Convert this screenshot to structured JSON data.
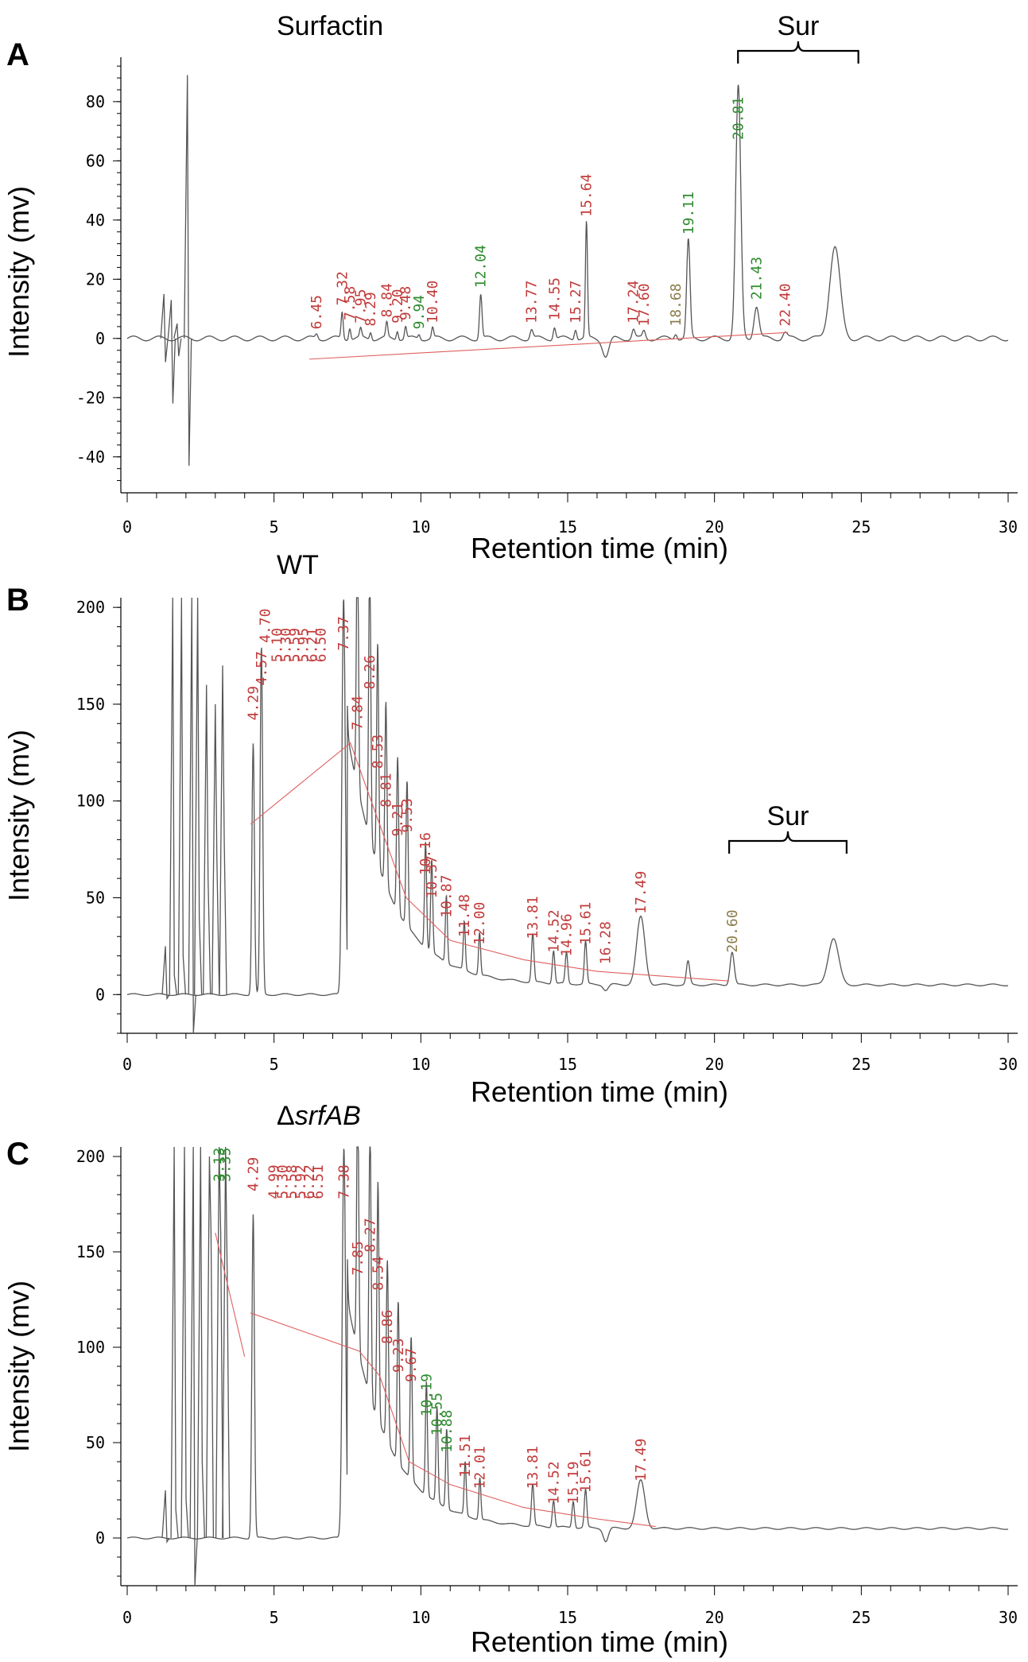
{
  "colors": {
    "trace": "#555555",
    "baseline": "#e06060",
    "label_red": "#c23b3b",
    "label_green": "#2e8b2e",
    "label_olive": "#8b7d4b"
  },
  "chart_data": [
    {
      "type": "line",
      "panel": "A",
      "title": "Surfactin",
      "xlabel": "Retention time (min)",
      "ylabel": "Intensity (mv)",
      "xlim": [
        0,
        30
      ],
      "ylim": [
        -50,
        95
      ],
      "xticks": [
        0,
        5,
        10,
        15,
        20,
        25,
        30
      ],
      "yticks": [
        -40,
        -20,
        0,
        20,
        40,
        60,
        80
      ],
      "bracket": {
        "label": "Sur",
        "x_start": 20.8,
        "x_end": 24.9
      },
      "baseline_y": 0,
      "spikes": [
        [
          1.25,
          15,
          -8
        ],
        [
          1.5,
          13,
          -22
        ],
        [
          1.7,
          5,
          -6
        ],
        [
          2.05,
          89,
          -43
        ]
      ],
      "peaks": [
        {
          "t": 6.45,
          "h": 1.5,
          "w": 0.06
        },
        {
          "t": 7.32,
          "h": 9,
          "w": 0.05
        },
        {
          "t": 7.58,
          "h": 4,
          "w": 0.05
        },
        {
          "t": 7.95,
          "h": 3,
          "w": 0.05
        },
        {
          "t": 8.29,
          "h": 2.5,
          "w": 0.05
        },
        {
          "t": 8.84,
          "h": 5,
          "w": 0.05
        },
        {
          "t": 9.2,
          "h": 3,
          "w": 0.05
        },
        {
          "t": 9.48,
          "h": 4,
          "w": 0.05
        },
        {
          "t": 9.94,
          "h": 1.5,
          "w": 0.05
        },
        {
          "t": 10.4,
          "h": 3.5,
          "w": 0.05
        },
        {
          "t": 12.04,
          "h": 15,
          "w": 0.06
        },
        {
          "t": 13.77,
          "h": 3,
          "w": 0.07
        },
        {
          "t": 14.55,
          "h": 4,
          "w": 0.06
        },
        {
          "t": 15.27,
          "h": 3.5,
          "w": 0.06
        },
        {
          "t": 15.64,
          "h": 39,
          "w": 0.05
        },
        {
          "t": 16.3,
          "h": -6,
          "w": 0.15
        },
        {
          "t": 17.24,
          "h": 3,
          "w": 0.07
        },
        {
          "t": 17.6,
          "h": 2.5,
          "w": 0.07
        },
        {
          "t": 18.68,
          "h": 2,
          "w": 0.07
        },
        {
          "t": 19.11,
          "h": 33,
          "w": 0.08
        },
        {
          "t": 20.81,
          "h": 85,
          "w": 0.12
        },
        {
          "t": 21.43,
          "h": 11,
          "w": 0.12
        },
        {
          "t": 22.4,
          "h": 2,
          "w": 0.1
        },
        {
          "t": 24.1,
          "h": 31,
          "w": 0.25
        }
      ],
      "labels": [
        {
          "t": 6.45,
          "text": "6.45",
          "color": "red",
          "y": 2
        },
        {
          "t": 7.32,
          "text": "7.32",
          "color": "red",
          "y": 10
        },
        {
          "t": 7.58,
          "text": "7.58",
          "color": "red",
          "y": 5
        },
        {
          "t": 7.95,
          "text": "7.95",
          "color": "red",
          "y": 4
        },
        {
          "t": 8.29,
          "text": "8.29",
          "color": "red",
          "y": 3
        },
        {
          "t": 8.84,
          "text": "8.84",
          "color": "red",
          "y": 6
        },
        {
          "t": 9.2,
          "text": "9.20",
          "color": "red",
          "y": 4
        },
        {
          "t": 9.48,
          "text": "9.48",
          "color": "red",
          "y": 5
        },
        {
          "t": 9.94,
          "text": "9.94",
          "color": "green",
          "y": 2
        },
        {
          "t": 10.4,
          "text": "10.40",
          "color": "red",
          "y": 4
        },
        {
          "t": 12.04,
          "text": "12.04",
          "color": "green",
          "y": 16
        },
        {
          "t": 13.77,
          "text": "13.77",
          "color": "red",
          "y": 4
        },
        {
          "t": 14.55,
          "text": "14.55",
          "color": "red",
          "y": 5
        },
        {
          "t": 15.27,
          "text": "15.27",
          "color": "red",
          "y": 4
        },
        {
          "t": 15.64,
          "text": "15.64",
          "color": "red",
          "y": 40
        },
        {
          "t": 17.24,
          "text": "17.24",
          "color": "red",
          "y": 4
        },
        {
          "t": 17.6,
          "text": "17.60",
          "color": "red",
          "y": 3
        },
        {
          "t": 18.68,
          "text": "18.68",
          "color": "olive",
          "y": 3
        },
        {
          "t": 19.11,
          "text": "19.11",
          "color": "green",
          "y": 34
        },
        {
          "t": 20.81,
          "text": "20.81",
          "color": "green",
          "y": 66
        },
        {
          "t": 21.43,
          "text": "21.43",
          "color": "green",
          "y": 12
        },
        {
          "t": 22.4,
          "text": "22.40",
          "color": "red",
          "y": 3
        }
      ]
    },
    {
      "type": "line",
      "panel": "B",
      "title": "WT",
      "xlabel": "Retention time (min)",
      "ylabel": "Intensity (mv)",
      "xlim": [
        0,
        30
      ],
      "ylim": [
        -20,
        205
      ],
      "xticks": [
        0,
        5,
        10,
        15,
        20,
        25,
        30
      ],
      "yticks": [
        0,
        50,
        100,
        150,
        200
      ],
      "bracket": {
        "label": "Sur",
        "x_start": 20.5,
        "x_end": 24.5
      },
      "spikes": [
        [
          1.3,
          25,
          -2
        ],
        [
          1.55,
          205,
          10
        ],
        [
          1.85,
          205,
          20
        ],
        [
          2.2,
          205,
          -25
        ],
        [
          2.4,
          205,
          40
        ],
        [
          2.7,
          160,
          60
        ],
        [
          3.0,
          150,
          70
        ],
        [
          3.25,
          170,
          80
        ]
      ],
      "peaks": [
        {
          "t": 4.29,
          "h": 130,
          "w": 0.06
        },
        {
          "t": 4.57,
          "h": 180,
          "w": 0.06
        },
        {
          "t": 7.37,
          "h": 205,
          "w": 0.08
        },
        {
          "t": 7.84,
          "h": 135,
          "w": 0.05
        },
        {
          "t": 8.26,
          "h": 150,
          "w": 0.05
        },
        {
          "t": 8.53,
          "h": 115,
          "w": 0.05
        },
        {
          "t": 8.81,
          "h": 95,
          "w": 0.05
        },
        {
          "t": 9.21,
          "h": 80,
          "w": 0.05
        },
        {
          "t": 9.53,
          "h": 75,
          "w": 0.05
        },
        {
          "t": 10.16,
          "h": 55,
          "w": 0.05
        },
        {
          "t": 10.37,
          "h": 48,
          "w": 0.05
        },
        {
          "t": 10.87,
          "h": 35,
          "w": 0.05
        },
        {
          "t": 11.48,
          "h": 25,
          "w": 0.05
        },
        {
          "t": 12.0,
          "h": 22,
          "w": 0.05
        },
        {
          "t": 13.81,
          "h": 25,
          "w": 0.06
        },
        {
          "t": 14.52,
          "h": 17,
          "w": 0.06
        },
        {
          "t": 14.96,
          "h": 16,
          "w": 0.06
        },
        {
          "t": 15.61,
          "h": 22,
          "w": 0.06
        },
        {
          "t": 16.3,
          "h": -3,
          "w": 0.12
        },
        {
          "t": 17.49,
          "h": 35,
          "w": 0.2
        },
        {
          "t": 19.1,
          "h": 12,
          "w": 0.08
        },
        {
          "t": 20.6,
          "h": 17,
          "w": 0.1
        },
        {
          "t": 24.05,
          "h": 24,
          "w": 0.25
        }
      ],
      "labels": [
        {
          "t": 4.29,
          "text": "4.29",
          "color": "red",
          "y": 140
        },
        {
          "t": 4.57,
          "text": "4.57",
          "color": "red",
          "y": 158
        },
        {
          "t": 4.7,
          "text": "4.70",
          "color": "red",
          "y": 180
        },
        {
          "t": 5.1,
          "text": "5.10",
          "color": "red",
          "y": 170
        },
        {
          "t": 5.4,
          "text": "5.30",
          "color": "red",
          "y": 170
        },
        {
          "t": 5.7,
          "text": "5.59",
          "color": "red",
          "y": 170
        },
        {
          "t": 6.0,
          "text": "5.95",
          "color": "red",
          "y": 170
        },
        {
          "t": 6.3,
          "text": "6.21",
          "color": "red",
          "y": 170
        },
        {
          "t": 6.6,
          "text": "6.50",
          "color": "red",
          "y": 170
        },
        {
          "t": 7.37,
          "text": "7.37",
          "color": "red",
          "y": 176
        },
        {
          "t": 7.84,
          "text": "7.84",
          "color": "red",
          "y": 135
        },
        {
          "t": 8.26,
          "text": "8.26",
          "color": "red",
          "y": 156
        },
        {
          "t": 8.53,
          "text": "8.53",
          "color": "red",
          "y": 115
        },
        {
          "t": 8.81,
          "text": "8.81",
          "color": "red",
          "y": 95
        },
        {
          "t": 9.21,
          "text": "9.21",
          "color": "red",
          "y": 80
        },
        {
          "t": 9.53,
          "text": "9.53",
          "color": "red",
          "y": 82
        },
        {
          "t": 10.16,
          "text": "10.16",
          "color": "red",
          "y": 60
        },
        {
          "t": 10.37,
          "text": "10.37",
          "color": "red",
          "y": 48
        },
        {
          "t": 10.87,
          "text": "10.87",
          "color": "red",
          "y": 38
        },
        {
          "t": 11.48,
          "text": "11.48",
          "color": "red",
          "y": 28
        },
        {
          "t": 12.0,
          "text": "12.00",
          "color": "red",
          "y": 24
        },
        {
          "t": 13.81,
          "text": "13.81",
          "color": "red",
          "y": 27
        },
        {
          "t": 14.52,
          "text": "14.52",
          "color": "red",
          "y": 20
        },
        {
          "t": 14.96,
          "text": "14.96",
          "color": "red",
          "y": 18
        },
        {
          "t": 15.61,
          "text": "15.61",
          "color": "red",
          "y": 24
        },
        {
          "t": 16.28,
          "text": "16.28",
          "color": "red",
          "y": 14
        },
        {
          "t": 17.49,
          "text": "17.49",
          "color": "red",
          "y": 40
        },
        {
          "t": 20.6,
          "text": "20.60",
          "color": "olive",
          "y": 20
        }
      ],
      "baseline_segments": [
        [
          [
            4.2,
            88
          ],
          [
            7.6,
            130
          ],
          [
            8.5,
            92
          ],
          [
            9.5,
            50
          ],
          [
            11.0,
            28
          ],
          [
            13.5,
            18
          ],
          [
            16.0,
            12
          ],
          [
            20.5,
            7
          ]
        ]
      ]
    },
    {
      "type": "line",
      "panel": "C",
      "title": "ΔsrfAB",
      "xlabel": "Retention time (min)",
      "ylabel": "Intensity (mv)",
      "xlim": [
        0,
        30
      ],
      "ylim": [
        -25,
        205
      ],
      "xticks": [
        0,
        5,
        10,
        15,
        20,
        25,
        30
      ],
      "yticks": [
        0,
        50,
        100,
        150,
        200
      ],
      "spikes": [
        [
          1.3,
          25,
          -2
        ],
        [
          1.6,
          205,
          15
        ],
        [
          1.95,
          205,
          20
        ],
        [
          2.25,
          205,
          -25
        ],
        [
          2.5,
          205,
          40
        ],
        [
          2.8,
          200,
          160
        ],
        [
          3.13,
          205,
          160
        ],
        [
          3.35,
          205,
          140
        ]
      ],
      "peaks": [
        {
          "t": 4.29,
          "h": 170,
          "w": 0.06
        },
        {
          "t": 7.38,
          "h": 205,
          "w": 0.08
        },
        {
          "t": 7.85,
          "h": 135,
          "w": 0.05
        },
        {
          "t": 8.27,
          "h": 145,
          "w": 0.05
        },
        {
          "t": 8.54,
          "h": 125,
          "w": 0.05
        },
        {
          "t": 8.86,
          "h": 95,
          "w": 0.05
        },
        {
          "t": 9.23,
          "h": 85,
          "w": 0.05
        },
        {
          "t": 9.67,
          "h": 75,
          "w": 0.05
        },
        {
          "t": 10.19,
          "h": 60,
          "w": 0.05
        },
        {
          "t": 10.55,
          "h": 50,
          "w": 0.05
        },
        {
          "t": 10.88,
          "h": 42,
          "w": 0.05
        },
        {
          "t": 11.51,
          "h": 28,
          "w": 0.05
        },
        {
          "t": 12.01,
          "h": 22,
          "w": 0.05
        },
        {
          "t": 13.81,
          "h": 22,
          "w": 0.06
        },
        {
          "t": 14.52,
          "h": 14,
          "w": 0.06
        },
        {
          "t": 15.19,
          "h": 14,
          "w": 0.06
        },
        {
          "t": 15.61,
          "h": 20,
          "w": 0.06
        },
        {
          "t": 16.3,
          "h": -7,
          "w": 0.12
        },
        {
          "t": 17.49,
          "h": 25,
          "w": 0.2
        }
      ],
      "labels": [
        {
          "t": 3.13,
          "text": "3.13",
          "color": "green",
          "y": 185
        },
        {
          "t": 3.35,
          "text": "3.35",
          "color": "green",
          "y": 185
        },
        {
          "t": 4.29,
          "text": "4.29",
          "color": "red",
          "y": 180
        },
        {
          "t": 5.0,
          "text": "4.99",
          "color": "red",
          "y": 176
        },
        {
          "t": 5.3,
          "text": "5.30",
          "color": "red",
          "y": 176
        },
        {
          "t": 5.6,
          "text": "5.58",
          "color": "red",
          "y": 176
        },
        {
          "t": 5.9,
          "text": "5.92",
          "color": "red",
          "y": 176
        },
        {
          "t": 6.2,
          "text": "6.22",
          "color": "red",
          "y": 176
        },
        {
          "t": 6.5,
          "text": "6.51",
          "color": "red",
          "y": 176
        },
        {
          "t": 7.38,
          "text": "7.38",
          "color": "red",
          "y": 176
        },
        {
          "t": 7.85,
          "text": "7.85",
          "color": "red",
          "y": 136
        },
        {
          "t": 8.27,
          "text": "8.27",
          "color": "red",
          "y": 148
        },
        {
          "t": 8.54,
          "text": "8.54",
          "color": "red",
          "y": 128
        },
        {
          "t": 8.86,
          "text": "8.86",
          "color": "red",
          "y": 100
        },
        {
          "t": 9.23,
          "text": "9.23",
          "color": "red",
          "y": 85
        },
        {
          "t": 9.67,
          "text": "9.67",
          "color": "red",
          "y": 80
        },
        {
          "t": 10.19,
          "text": "10.19",
          "color": "green",
          "y": 62
        },
        {
          "t": 10.55,
          "text": "10.55",
          "color": "green",
          "y": 52
        },
        {
          "t": 10.88,
          "text": "10.88",
          "color": "green",
          "y": 43
        },
        {
          "t": 11.51,
          "text": "11.51",
          "color": "red",
          "y": 30
        },
        {
          "t": 12.01,
          "text": "12.01",
          "color": "red",
          "y": 24
        },
        {
          "t": 13.81,
          "text": "13.81",
          "color": "red",
          "y": 24
        },
        {
          "t": 14.52,
          "text": "14.52",
          "color": "red",
          "y": 16
        },
        {
          "t": 15.19,
          "text": "15.19",
          "color": "red",
          "y": 16
        },
        {
          "t": 15.61,
          "text": "15.61",
          "color": "red",
          "y": 22
        },
        {
          "t": 17.49,
          "text": "17.49",
          "color": "red",
          "y": 28
        }
      ],
      "baseline_segments": [
        [
          [
            3.0,
            160
          ],
          [
            4.0,
            95
          ]
        ],
        [
          [
            4.2,
            118
          ],
          [
            7.9,
            98
          ],
          [
            8.6,
            85
          ],
          [
            9.6,
            40
          ],
          [
            11.0,
            28
          ],
          [
            13.5,
            16
          ],
          [
            16.0,
            10
          ],
          [
            18.0,
            6
          ]
        ]
      ]
    }
  ]
}
